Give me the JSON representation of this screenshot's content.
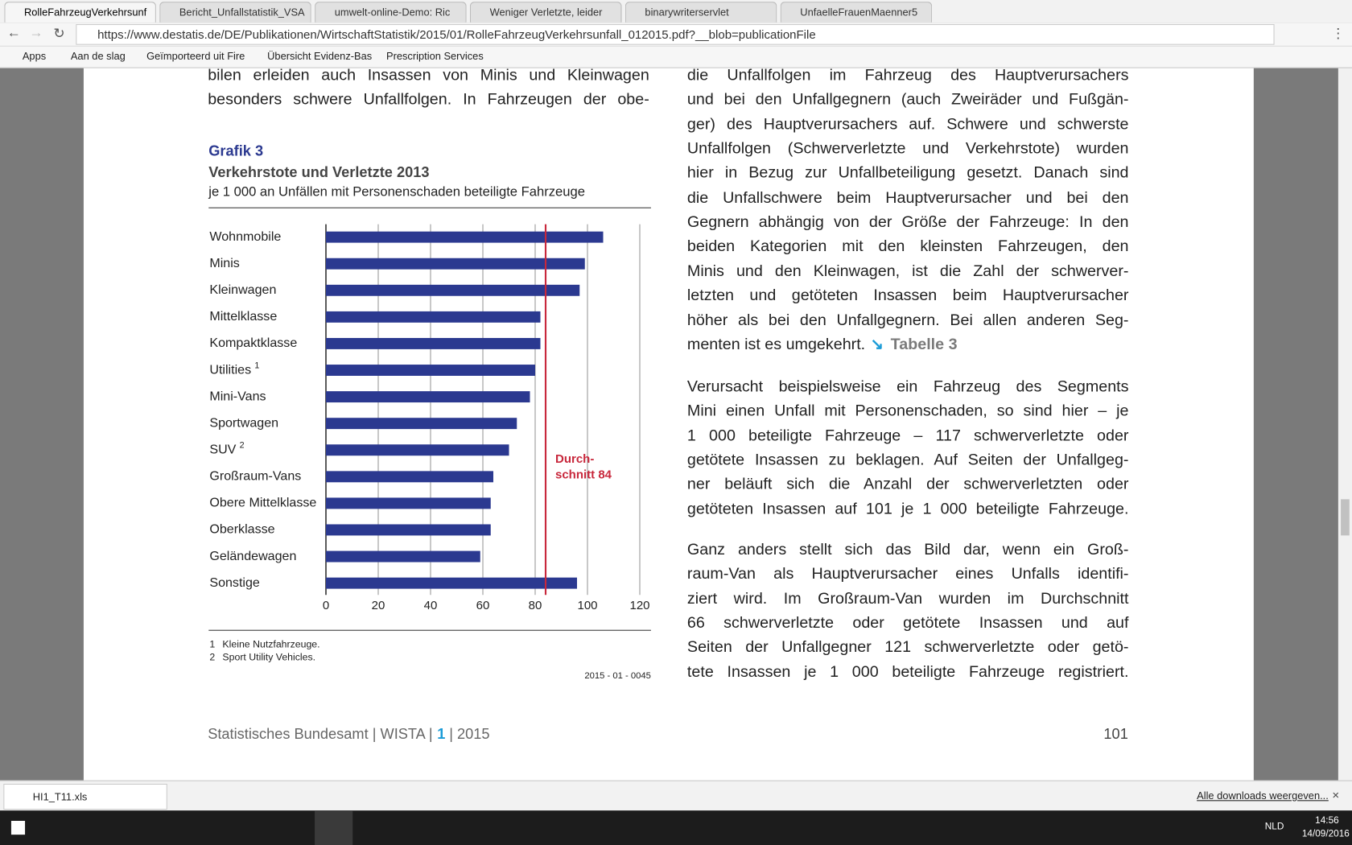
{
  "browser": {
    "tabs": [
      "RolleFahrzeugVerkehrsunf",
      "Bericht_Unfallstatistik_VSA",
      "umwelt-online-Demo: Ric",
      "Weniger Verletzte, leider",
      "binarywriterservlet",
      "UnfaelleFrauenMaenner5"
    ],
    "url": "https://www.destatis.de/DE/Publikationen/WirtschaftStatistik/2015/01/RolleFahrzeugVerkehrsunfall_012015.pdf?__blob=publicationFile",
    "bookmarks": [
      "Apps",
      "Aan de slag",
      "Geïmporteerd uit Fire",
      "Übersicht Evidenz-Bas",
      "Prescription Services"
    ]
  },
  "document": {
    "left_lines": [
      "bilen erleiden auch Insassen von Minis und Kleinwagen",
      "besonders schwere Unfallfolgen. In Fahrzeugen der obe-"
    ],
    "paragraphs": [
      [
        "die Unfallfolgen im Fahrzeug des Hauptverursachers",
        "und bei den Unfallgegnern (auch Zweiräder und Fußgän-",
        "ger) des Hauptverursachers auf. Schwere und schwerste",
        "Unfallfolgen (Schwerverletzte und Verkehrstote) wurden",
        "hier in Bezug zur Unfallbeteiligung gesetzt. Danach sind",
        "die Unfallschwere beim Hauptverursacher und bei den",
        "Gegnern abhängig von der Größe der Fahrzeuge: In den",
        "beiden Kategorien mit den kleinsten Fahrzeugen, den",
        "Minis und den Kleinwagen, ist die Zahl der schwerver-",
        "letzten und getöteten Insassen beim Hauptverursacher",
        "höher als bei den Unfallgegnern. Bei allen anderen Seg-",
        "menten ist es umgekehrt."
      ],
      [
        "Verursacht beispielsweise ein Fahrzeug des Segments",
        "Mini einen Unfall mit Personenschaden, so sind hier – je",
        "1 000 beteiligte Fahrzeuge – 117 schwerverletzte oder",
        "getötete Insassen zu beklagen. Auf Seiten der Unfallgeg-",
        "ner beläuft sich die Anzahl der schwerverletzten oder",
        "getöteten Insassen auf 101 je 1 000 beteiligte Fahrzeuge."
      ],
      [
        "Ganz anders stellt sich das Bild dar, wenn ein Groß-",
        "raum-Van als Hauptverursacher eines Unfalls identifi-",
        "ziert wird. Im Großraum-Van wurden im Durchschnitt",
        "66 schwerverletzte oder getötete Insassen und auf",
        "Seiten der Unfallgegner 121 schwerverletzte oder getö-",
        "tete Insassen je 1 000 beteiligte Fahrzeuge registriert."
      ]
    ],
    "table_link": "Tabelle 3",
    "footer": {
      "publisher": "Statistisches Bundesamt | WISTA |",
      "issue": "1",
      "year": "| 2015",
      "page": "101"
    }
  },
  "chart_data": {
    "type": "bar",
    "orientation": "horizontal",
    "label": "Grafik 3",
    "title": "Verkehrstote und Verletzte 2013",
    "subtitle": "je 1 000 an Unfällen mit Personenschaden beteiligte Fahrzeuge",
    "categories": [
      "Wohnmobile",
      "Minis",
      "Kleinwagen",
      "Mittelklasse",
      "Kompaktklasse",
      "Utilities",
      "Mini-Vans",
      "Sportwagen",
      "SUV",
      "Großraum-Vans",
      "Obere Mittelklasse",
      "Oberklasse",
      "Geländewagen",
      "Sonstige"
    ],
    "category_notes": [
      null,
      null,
      null,
      null,
      null,
      "1",
      null,
      null,
      "2",
      null,
      null,
      null,
      null,
      null
    ],
    "values": [
      106,
      99,
      97,
      82,
      82,
      80,
      78,
      73,
      70,
      64,
      63,
      63,
      59,
      96
    ],
    "color": "#2b3990",
    "xlim": [
      0,
      120
    ],
    "xticks": [
      0,
      20,
      40,
      60,
      80,
      100,
      120
    ],
    "grid": true,
    "average": {
      "value": 84,
      "label_lines": [
        "Durch-",
        "schnitt 84"
      ],
      "color": "#c8283c"
    },
    "footnotes": [
      {
        "number": "1",
        "text": "Kleine Nutzfahrzeuge."
      },
      {
        "number": "2",
        "text": "Sport Utility Vehicles."
      }
    ],
    "code": "2015 - 01 - 0045"
  },
  "downloads": {
    "file": "HI1_T11.xls",
    "show_all": "Alle downloads weergeven..."
  },
  "taskbar": {
    "language": "NLD",
    "time": "14:56",
    "date": "14/09/2016"
  }
}
